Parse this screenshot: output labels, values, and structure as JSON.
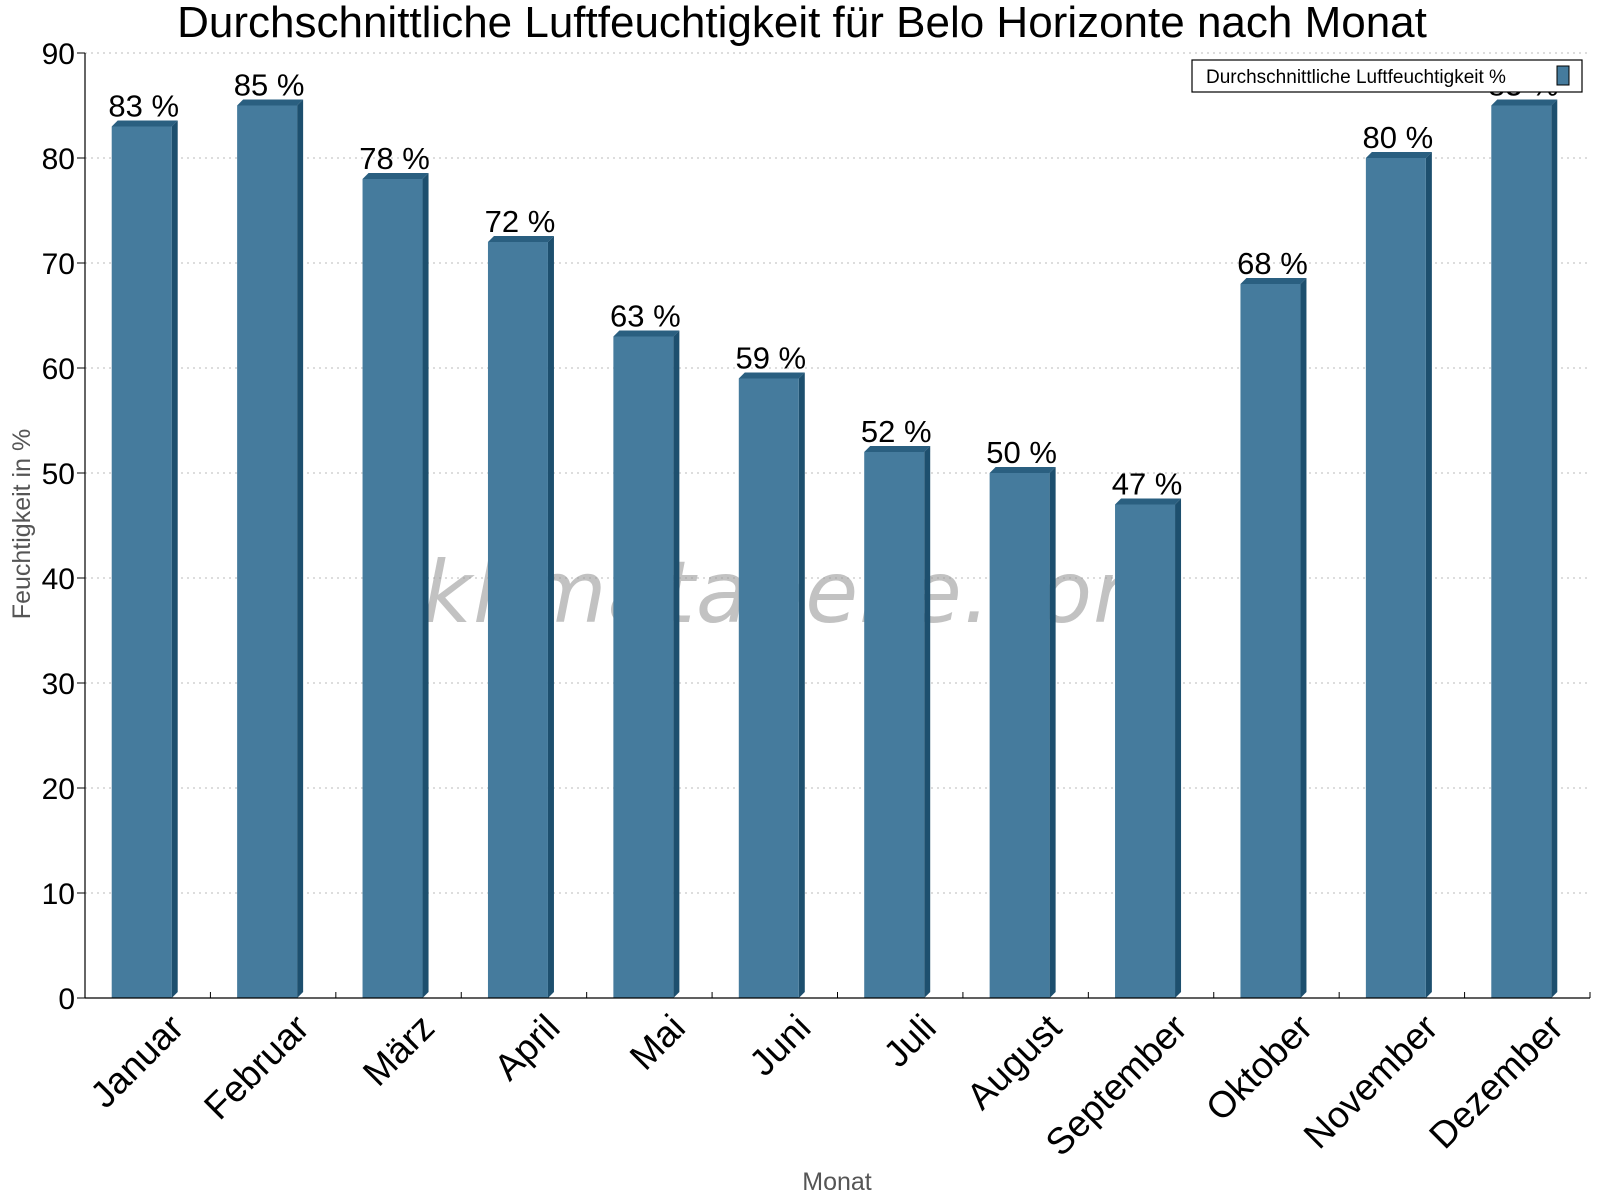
{
  "colors": {
    "bar_front": "#457b9d",
    "bar_side": "#1d4f6e",
    "bar_top": "#2a5f80",
    "grid": "#bbbbbb",
    "axis": "#000000"
  },
  "watermark": "klimatabelle.com",
  "chart_data": {
    "type": "bar",
    "title": "Durchschnittliche Luftfeuchtigkeit für Belo Horizonte nach Monat",
    "xlabel": "Monat",
    "ylabel": "Feuchtigkeit in %",
    "ylim": [
      0,
      90
    ],
    "yticks": [
      "0",
      "10",
      "20",
      "30",
      "40",
      "50",
      "60",
      "70",
      "80",
      "90"
    ],
    "grid": true,
    "legend_position": "top-right",
    "categories": [
      "Januar",
      "Februar",
      "März",
      "April",
      "Mai",
      "Juni",
      "Juli",
      "August",
      "September",
      "Oktober",
      "November",
      "Dezember"
    ],
    "series": [
      {
        "name": "Durchschnittliche Luftfeuchtigkeit %",
        "values": [
          83,
          85,
          78,
          72,
          63,
          59,
          52,
          50,
          47,
          68,
          80,
          85
        ],
        "labels": [
          "83 %",
          "85 %",
          "78 %",
          "72 %",
          "63 %",
          "59 %",
          "52 %",
          "50 %",
          "47 %",
          "68 %",
          "80 %",
          "85 %"
        ]
      }
    ]
  }
}
